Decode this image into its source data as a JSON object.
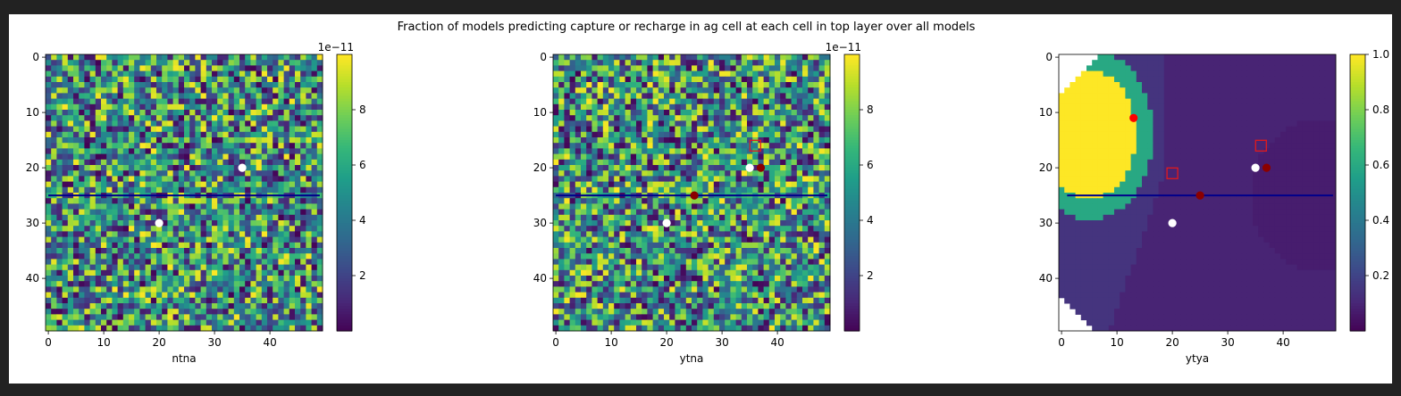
{
  "figure": {
    "title": "Fraction of models predicting capture or recharge in ag cell at each cell in top layer over all models"
  },
  "colors": {
    "viridis": [
      "#440154",
      "#482878",
      "#3e4989",
      "#31688e",
      "#26828e",
      "#1f9e89",
      "#35b779",
      "#6ece58",
      "#b5de2b",
      "#fde725"
    ],
    "line": "#00008b",
    "white_dot": "#ffffff",
    "dark_red_dot": "#8b0000",
    "red_dot": "#ff0000",
    "square": "#e31a1c"
  },
  "chart_data": [
    {
      "type": "heatmap",
      "panel": "ntna",
      "xlabel": "ntna",
      "grid_size": [
        50,
        50
      ],
      "x_ticks": [
        "0",
        "10",
        "20",
        "30",
        "40"
      ],
      "y_ticks": [
        "0",
        "10",
        "20",
        "30",
        "40"
      ],
      "value_pattern": "random noise",
      "colorbar": {
        "min": 0,
        "max": 1e-10,
        "ticks": [
          "2",
          "4",
          "6",
          "8"
        ],
        "offset_label": "1e−11",
        "cmap": "viridis"
      },
      "hline": {
        "y": 25,
        "x_from": 0,
        "x_to": 49
      },
      "markers": [
        {
          "x": 35,
          "y": 20,
          "style": "white-dot"
        },
        {
          "x": 20,
          "y": 30,
          "style": "white-dot"
        }
      ]
    },
    {
      "type": "heatmap",
      "panel": "ytna",
      "xlabel": "ytna",
      "grid_size": [
        50,
        50
      ],
      "x_ticks": [
        "0",
        "10",
        "20",
        "30",
        "40"
      ],
      "y_ticks": [
        "0",
        "10",
        "20",
        "30",
        "40"
      ],
      "value_pattern": "random noise",
      "colorbar": {
        "min": 0,
        "max": 1e-10,
        "ticks": [
          "2",
          "4",
          "6",
          "8"
        ],
        "offset_label": "1e−11",
        "cmap": "viridis"
      },
      "hline": {
        "y": 25,
        "x_from": 0,
        "x_to": 49
      },
      "markers": [
        {
          "x": 35,
          "y": 20,
          "style": "white-dot"
        },
        {
          "x": 37,
          "y": 20,
          "style": "dark-red-dot"
        },
        {
          "x": 25,
          "y": 25,
          "style": "dark-red-dot"
        },
        {
          "x": 20,
          "y": 30,
          "style": "white-dot"
        },
        {
          "x": 36,
          "y": 16,
          "style": "square"
        }
      ]
    },
    {
      "type": "heatmap",
      "panel": "ytya",
      "xlabel": "ytya",
      "grid_size": [
        50,
        50
      ],
      "x_ticks": [
        "0",
        "10",
        "20",
        "30",
        "40"
      ],
      "y_ticks": [
        "0",
        "10",
        "20",
        "30",
        "40"
      ],
      "value_pattern": "zones",
      "zones": [
        {
          "name": "high",
          "value": 1.0
        },
        {
          "name": "ring",
          "value": 0.6
        },
        {
          "name": "band",
          "value": 0.15
        },
        {
          "name": "low",
          "value": 0.05
        },
        {
          "name": "corner",
          "value": null
        }
      ],
      "colorbar": {
        "min": 0.0,
        "max": 1.0,
        "ticks": [
          "1.0",
          "0.8",
          "0.6",
          "0.4",
          "0.2"
        ],
        "offset_label": "",
        "cmap": "viridis"
      },
      "hline": {
        "y": 25,
        "x_from": 1,
        "x_to": 49
      },
      "markers": [
        {
          "x": 13,
          "y": 11,
          "style": "red-dot"
        },
        {
          "x": 35,
          "y": 20,
          "style": "white-dot"
        },
        {
          "x": 37,
          "y": 20,
          "style": "dark-red-dot"
        },
        {
          "x": 25,
          "y": 25,
          "style": "dark-red-dot"
        },
        {
          "x": 20,
          "y": 30,
          "style": "white-dot"
        },
        {
          "x": 36,
          "y": 16,
          "style": "square"
        },
        {
          "x": 20,
          "y": 21,
          "style": "square"
        }
      ]
    }
  ]
}
